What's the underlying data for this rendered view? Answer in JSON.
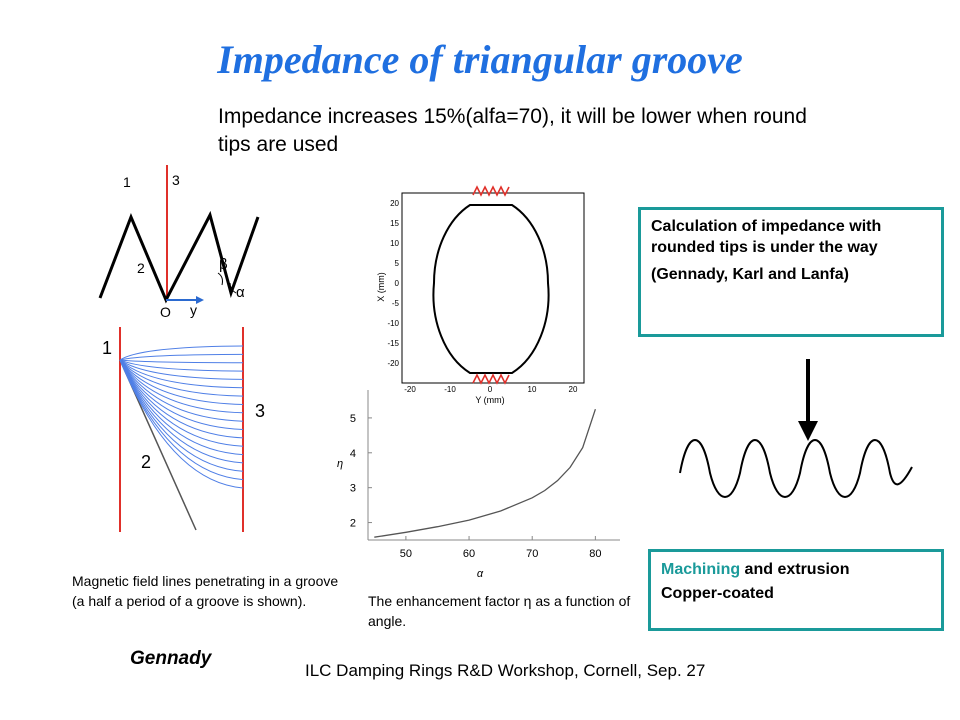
{
  "slide": {
    "title": "Impedance of triangular groove",
    "subtitle": "Impedance increases 15%(alfa=70), it will be lower when round tips are used"
  },
  "groove_diagram": {
    "labels": {
      "one": "1",
      "three": "3",
      "two": "2",
      "beta": "β",
      "alpha": "α",
      "origin": "O",
      "y": "y"
    }
  },
  "field_lines_figure": {
    "labels": {
      "one": "1",
      "two": "2",
      "three": "3"
    },
    "caption": "Magnetic field lines penetrating in a groove (a half a period of a groove is shown).",
    "author": "Gennady",
    "colors": {
      "lines": "#4f7fe6",
      "walls": "#e0302a"
    }
  },
  "cross_section_figure": {
    "xlabel": "Y (mm)",
    "ylabel": "X (mm)",
    "x_ticks": [
      "-20",
      "-10",
      "0",
      "10",
      "20"
    ],
    "y_ticks": [
      "20",
      "15",
      "10",
      "5",
      "0",
      "-5",
      "-10",
      "-15",
      "-20"
    ]
  },
  "chart_data": {
    "type": "line",
    "xlabel": "α",
    "ylabel": "η",
    "x_ticks": [
      50,
      60,
      70,
      80
    ],
    "y_ticks": [
      2,
      3,
      4,
      5
    ],
    "xlim": [
      44,
      82
    ],
    "ylim": [
      1.5,
      5.8
    ],
    "series": [
      {
        "x": [
          45,
          50,
          55,
          60,
          65,
          70,
          72,
          74,
          76,
          78,
          80
        ],
        "values": [
          1.58,
          1.72,
          1.88,
          2.07,
          2.33,
          2.71,
          2.92,
          3.2,
          3.58,
          4.15,
          5.25
        ]
      }
    ],
    "caption": "The enhancement factor η as a function of angle."
  },
  "calc_box": {
    "line1": "Calculation of impedance with rounded tips is under the way",
    "line2": "(Gennady, Karl and Lanfa)"
  },
  "machining_box": {
    "word1": "Machining",
    "rest1": " and extrusion",
    "line2": "Copper-coated"
  },
  "footer": "ILC Damping Rings R&D Workshop, Cornell, Sep. 27"
}
